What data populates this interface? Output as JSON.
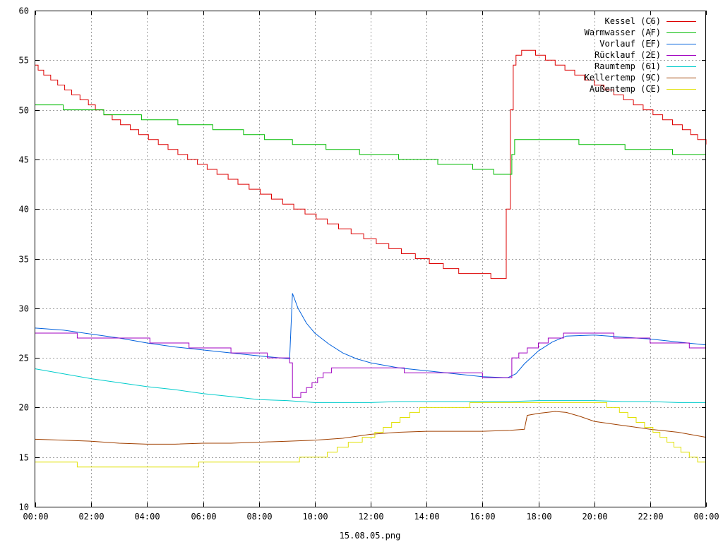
{
  "chart_data": {
    "type": "line",
    "xlabel": "15.08.05.png",
    "ylabel": "",
    "title": "",
    "x_range": [
      0,
      24
    ],
    "ylim": [
      10,
      60
    ],
    "y_ticks": [
      10,
      15,
      20,
      25,
      30,
      35,
      40,
      45,
      50,
      55,
      60
    ],
    "x_ticks": [
      {
        "value": 0,
        "label": "00:00"
      },
      {
        "value": 2,
        "label": "02:00"
      },
      {
        "value": 4,
        "label": "04:00"
      },
      {
        "value": 6,
        "label": "06:00"
      },
      {
        "value": 8,
        "label": "08:00"
      },
      {
        "value": 10,
        "label": "10:00"
      },
      {
        "value": 12,
        "label": "12:00"
      },
      {
        "value": 14,
        "label": "14:00"
      },
      {
        "value": 16,
        "label": "16:00"
      },
      {
        "value": 18,
        "label": "18:00"
      },
      {
        "value": 20,
        "label": "20:00"
      },
      {
        "value": 22,
        "label": "22:00"
      },
      {
        "value": 24,
        "label": "00:00"
      }
    ],
    "grid": true,
    "legend_position": "top-right",
    "series": [
      {
        "name": "Kessel (C6)",
        "color": "#dd0000",
        "style": "step",
        "points": [
          [
            0,
            54.5
          ],
          [
            0.1,
            54
          ],
          [
            0.3,
            53.5
          ],
          [
            0.55,
            53
          ],
          [
            0.8,
            52.5
          ],
          [
            1.05,
            52
          ],
          [
            1.3,
            51.5
          ],
          [
            1.6,
            51
          ],
          [
            1.9,
            50.5
          ],
          [
            2.15,
            50
          ],
          [
            2.45,
            49.5
          ],
          [
            2.75,
            49
          ],
          [
            3.05,
            48.5
          ],
          [
            3.4,
            48
          ],
          [
            3.7,
            47.5
          ],
          [
            4.05,
            47
          ],
          [
            4.4,
            46.5
          ],
          [
            4.75,
            46
          ],
          [
            5.1,
            45.5
          ],
          [
            5.45,
            45
          ],
          [
            5.8,
            44.5
          ],
          [
            6.15,
            44
          ],
          [
            6.5,
            43.5
          ],
          [
            6.9,
            43
          ],
          [
            7.25,
            42.5
          ],
          [
            7.65,
            42
          ],
          [
            8.05,
            41.5
          ],
          [
            8.45,
            41
          ],
          [
            8.85,
            40.5
          ],
          [
            9.25,
            40
          ],
          [
            9.65,
            39.5
          ],
          [
            10.05,
            39
          ],
          [
            10.45,
            38.5
          ],
          [
            10.85,
            38
          ],
          [
            11.3,
            37.5
          ],
          [
            11.75,
            37
          ],
          [
            12.2,
            36.5
          ],
          [
            12.65,
            36
          ],
          [
            13.1,
            35.5
          ],
          [
            13.6,
            35
          ],
          [
            14.1,
            34.5
          ],
          [
            14.6,
            34
          ],
          [
            15.15,
            33.5
          ],
          [
            15.7,
            33.5
          ],
          [
            16.3,
            33
          ],
          [
            16.65,
            33
          ],
          [
            16.85,
            40
          ],
          [
            17,
            50
          ],
          [
            17.1,
            54.5
          ],
          [
            17.2,
            55.5
          ],
          [
            17.4,
            56
          ],
          [
            17.9,
            55.5
          ],
          [
            18.25,
            55
          ],
          [
            18.6,
            54.5
          ],
          [
            18.95,
            54
          ],
          [
            19.3,
            53.5
          ],
          [
            19.65,
            53
          ],
          [
            20,
            52.5
          ],
          [
            20.35,
            52
          ],
          [
            20.7,
            51.5
          ],
          [
            21.05,
            51
          ],
          [
            21.4,
            50.5
          ],
          [
            21.75,
            50
          ],
          [
            22.1,
            49.5
          ],
          [
            22.45,
            49
          ],
          [
            22.8,
            48.5
          ],
          [
            23.15,
            48
          ],
          [
            23.45,
            47.5
          ],
          [
            23.7,
            47
          ],
          [
            24,
            46.5
          ]
        ]
      },
      {
        "name": "Warmwasser (AF)",
        "color": "#00bb00",
        "style": "step",
        "points": [
          [
            0,
            50.5
          ],
          [
            1,
            50
          ],
          [
            2.45,
            49.5
          ],
          [
            3.8,
            49
          ],
          [
            5.1,
            48.5
          ],
          [
            6.35,
            48
          ],
          [
            7.45,
            47.5
          ],
          [
            8.2,
            47
          ],
          [
            9.2,
            46.5
          ],
          [
            10.4,
            46
          ],
          [
            11.6,
            45.5
          ],
          [
            13,
            45
          ],
          [
            14.4,
            44.5
          ],
          [
            15.65,
            44
          ],
          [
            16.2,
            44
          ],
          [
            16.4,
            43.5
          ],
          [
            16.9,
            43.5
          ],
          [
            17.05,
            45.5
          ],
          [
            17.15,
            47
          ],
          [
            19.45,
            46.5
          ],
          [
            21.1,
            46
          ],
          [
            22.8,
            45.5
          ],
          [
            24,
            45.5
          ]
        ]
      },
      {
        "name": "Vorlauf (EF)",
        "color": "#0060dd",
        "style": "line",
        "points": [
          [
            0,
            28
          ],
          [
            1,
            27.8
          ],
          [
            2,
            27.4
          ],
          [
            3,
            27
          ],
          [
            4,
            26.5
          ],
          [
            5,
            26.1
          ],
          [
            6,
            25.8
          ],
          [
            7,
            25.5
          ],
          [
            8,
            25.2
          ],
          [
            9.1,
            24.9
          ],
          [
            9.2,
            31.5
          ],
          [
            9.4,
            30
          ],
          [
            9.7,
            28.5
          ],
          [
            10,
            27.5
          ],
          [
            10.5,
            26.4
          ],
          [
            11,
            25.5
          ],
          [
            11.5,
            24.9
          ],
          [
            12,
            24.5
          ],
          [
            13,
            24
          ],
          [
            14,
            23.7
          ],
          [
            15,
            23.4
          ],
          [
            16,
            23.1
          ],
          [
            16.9,
            23
          ],
          [
            17.2,
            23.4
          ],
          [
            17.5,
            24.4
          ],
          [
            18,
            25.7
          ],
          [
            18.5,
            26.6
          ],
          [
            19,
            27.2
          ],
          [
            20,
            27.3
          ],
          [
            21,
            27.1
          ],
          [
            22,
            26.9
          ],
          [
            23,
            26.6
          ],
          [
            24,
            26.3
          ]
        ]
      },
      {
        "name": "Rücklauf (2E)",
        "color": "#a000c0",
        "style": "step",
        "points": [
          [
            0,
            27.5
          ],
          [
            1.5,
            27
          ],
          [
            2.75,
            27
          ],
          [
            4.1,
            26.5
          ],
          [
            5.5,
            26
          ],
          [
            7,
            25.5
          ],
          [
            8.3,
            25
          ],
          [
            9.1,
            24.5
          ],
          [
            9.2,
            21
          ],
          [
            9.5,
            21.5
          ],
          [
            9.7,
            22
          ],
          [
            9.9,
            22.5
          ],
          [
            10.1,
            23
          ],
          [
            10.3,
            23.5
          ],
          [
            10.6,
            24
          ],
          [
            13,
            24
          ],
          [
            13.2,
            23.5
          ],
          [
            15.6,
            23.5
          ],
          [
            16,
            23
          ],
          [
            16.9,
            23
          ],
          [
            17.05,
            25
          ],
          [
            17.3,
            25.5
          ],
          [
            17.6,
            26
          ],
          [
            18,
            26.5
          ],
          [
            18.35,
            27
          ],
          [
            18.9,
            27.5
          ],
          [
            20,
            27.5
          ],
          [
            20.7,
            27
          ],
          [
            22,
            26.5
          ],
          [
            23.4,
            26
          ],
          [
            24,
            26
          ]
        ]
      },
      {
        "name": "Raumtemp (61)",
        "color": "#00cccc",
        "style": "line",
        "points": [
          [
            0,
            23.9
          ],
          [
            1,
            23.4
          ],
          [
            2,
            22.9
          ],
          [
            3,
            22.5
          ],
          [
            4,
            22.1
          ],
          [
            5,
            21.8
          ],
          [
            6,
            21.4
          ],
          [
            7,
            21.1
          ],
          [
            8,
            20.8
          ],
          [
            9,
            20.7
          ],
          [
            10,
            20.5
          ],
          [
            11,
            20.5
          ],
          [
            12,
            20.5
          ],
          [
            13,
            20.6
          ],
          [
            14,
            20.6
          ],
          [
            15,
            20.6
          ],
          [
            16,
            20.6
          ],
          [
            17,
            20.6
          ],
          [
            18,
            20.7
          ],
          [
            19,
            20.7
          ],
          [
            20,
            20.7
          ],
          [
            21,
            20.6
          ],
          [
            22,
            20.6
          ],
          [
            23,
            20.5
          ],
          [
            24,
            20.5
          ]
        ]
      },
      {
        "name": "Kellertemp (9C)",
        "color": "#a04000",
        "style": "line",
        "points": [
          [
            0,
            16.8
          ],
          [
            1,
            16.7
          ],
          [
            2,
            16.6
          ],
          [
            3,
            16.4
          ],
          [
            4,
            16.3
          ],
          [
            5,
            16.3
          ],
          [
            6,
            16.4
          ],
          [
            7,
            16.4
          ],
          [
            8,
            16.5
          ],
          [
            9,
            16.6
          ],
          [
            10,
            16.7
          ],
          [
            11,
            16.9
          ],
          [
            12,
            17.3
          ],
          [
            13,
            17.5
          ],
          [
            14,
            17.6
          ],
          [
            15,
            17.6
          ],
          [
            16,
            17.6
          ],
          [
            17,
            17.7
          ],
          [
            17.5,
            17.8
          ],
          [
            17.6,
            19.2
          ],
          [
            18,
            19.4
          ],
          [
            18.6,
            19.6
          ],
          [
            19,
            19.5
          ],
          [
            19.5,
            19.1
          ],
          [
            20,
            18.6
          ],
          [
            21,
            18.2
          ],
          [
            22,
            17.8
          ],
          [
            23,
            17.5
          ],
          [
            24,
            17
          ]
        ]
      },
      {
        "name": "Außentemp (CE)",
        "color": "#e0e000",
        "style": "step",
        "points": [
          [
            0,
            14.5
          ],
          [
            1.5,
            14
          ],
          [
            5.8,
            14
          ],
          [
            5.85,
            14.5
          ],
          [
            9.4,
            14.5
          ],
          [
            9.45,
            15
          ],
          [
            10.4,
            15
          ],
          [
            10.45,
            15.5
          ],
          [
            10.8,
            16
          ],
          [
            11.2,
            16.5
          ],
          [
            11.7,
            17
          ],
          [
            12.15,
            17.5
          ],
          [
            12.45,
            18
          ],
          [
            12.75,
            18.5
          ],
          [
            13.05,
            19
          ],
          [
            13.4,
            19.5
          ],
          [
            13.75,
            20
          ],
          [
            15.5,
            20
          ],
          [
            15.55,
            20.5
          ],
          [
            20.3,
            20.5
          ],
          [
            20.45,
            20
          ],
          [
            20.9,
            19.5
          ],
          [
            21.2,
            19
          ],
          [
            21.5,
            18.5
          ],
          [
            21.8,
            18
          ],
          [
            22.1,
            17.5
          ],
          [
            22.35,
            17
          ],
          [
            22.6,
            16.5
          ],
          [
            22.85,
            16
          ],
          [
            23.1,
            15.5
          ],
          [
            23.4,
            15
          ],
          [
            23.7,
            14.5
          ],
          [
            24,
            14.5
          ]
        ]
      }
    ]
  }
}
